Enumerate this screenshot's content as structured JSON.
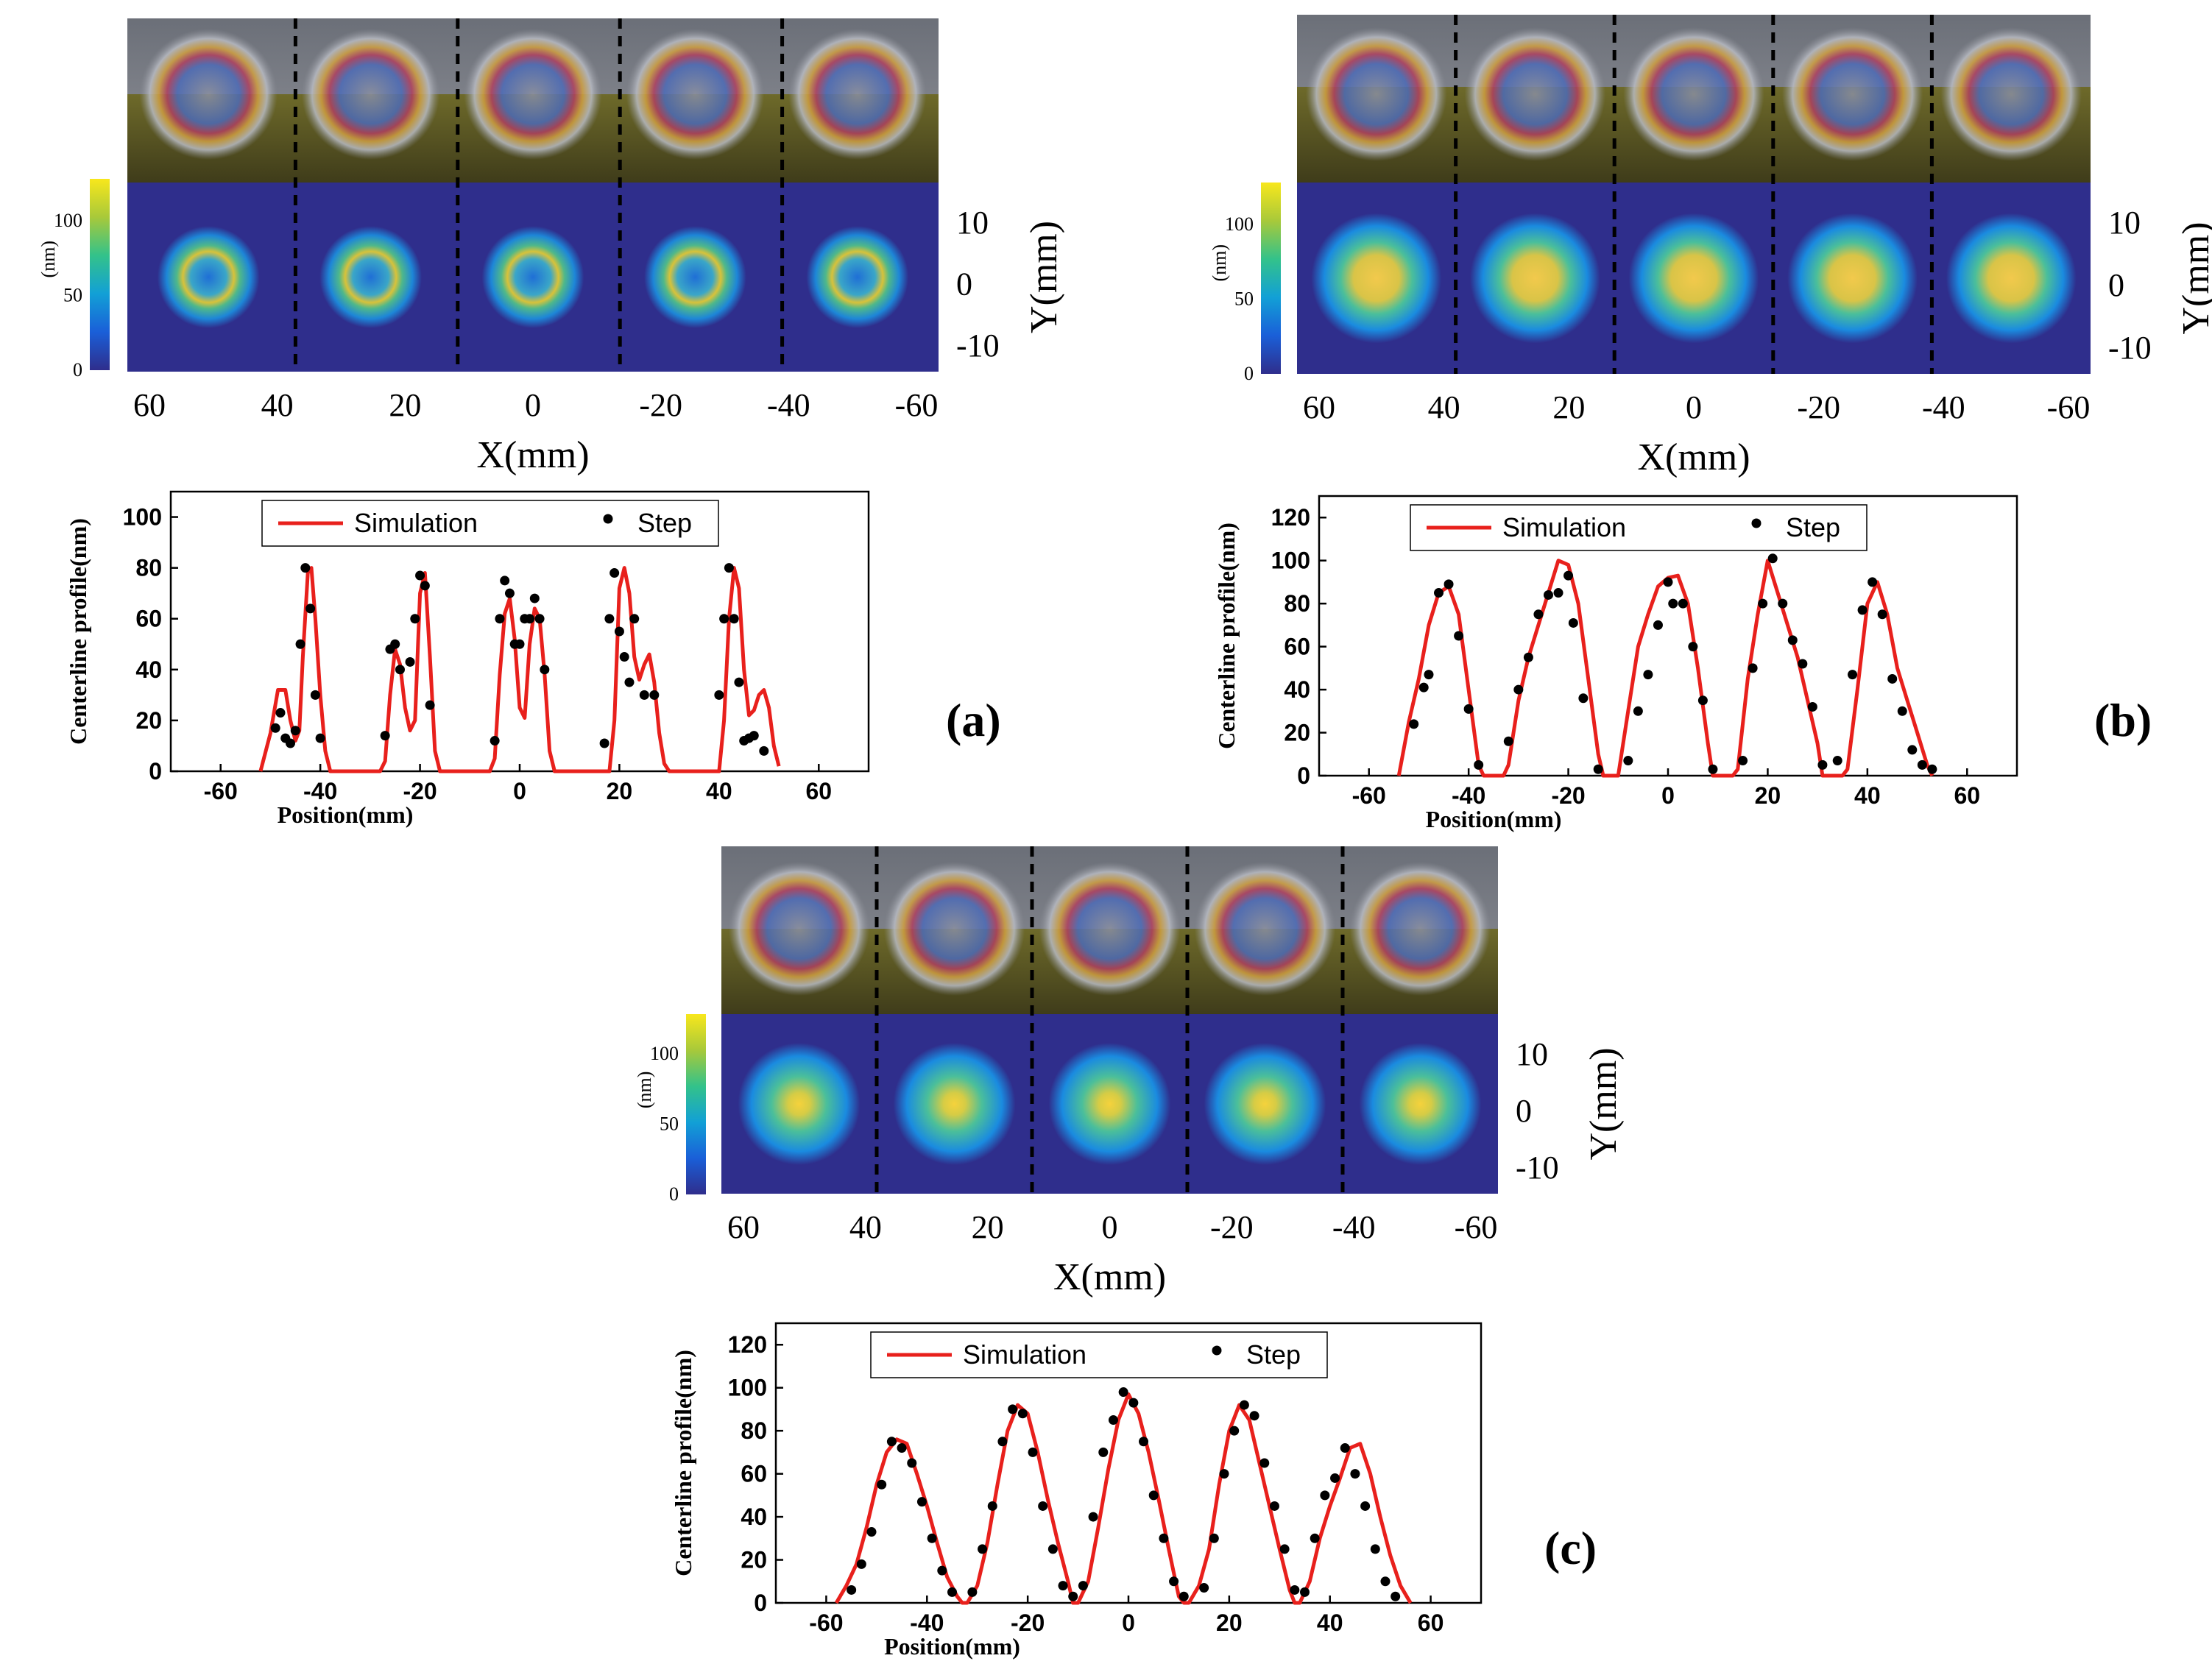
{
  "figure": {
    "panels": [
      {
        "id": "a",
        "label": "(a)",
        "colorbar_unit": "(nm)",
        "colorbar_ticks": [
          "0",
          "50",
          "100"
        ],
        "map_x_ticks": [
          "60",
          "40",
          "20",
          "0",
          "-20",
          "-40",
          "-60"
        ],
        "map_x_label": "X(mm)",
        "map_y_ticks": [
          "10",
          "0",
          "-10"
        ],
        "map_y_label": "Y(mm)",
        "spot_style": "ring"
      },
      {
        "id": "b",
        "label": "(b)",
        "colorbar_unit": "(nm)",
        "colorbar_ticks": [
          "0",
          "50",
          "100"
        ],
        "map_x_ticks": [
          "60",
          "40",
          "20",
          "0",
          "-20",
          "-40",
          "-60"
        ],
        "map_x_label": "X(mm)",
        "map_y_ticks": [
          "10",
          "0",
          "-10"
        ],
        "map_y_label": "Y(mm)",
        "spot_style": "filled"
      },
      {
        "id": "c",
        "label": "(c)",
        "colorbar_unit": "(nm)",
        "colorbar_ticks": [
          "0",
          "50",
          "100"
        ],
        "map_x_ticks": [
          "60",
          "40",
          "20",
          "0",
          "-20",
          "-40",
          "-60"
        ],
        "map_x_label": "X(mm)",
        "map_y_ticks": [
          "10",
          "0",
          "-10"
        ],
        "map_y_label": "Y(mm)",
        "spot_style": "smooth"
      }
    ],
    "colors": {
      "simulation": "#e8201c",
      "step": "#000000",
      "map_background": "#2f2e8c",
      "dashed_divider": "#000000"
    }
  },
  "chart_data": [
    {
      "panel": "a",
      "type": "line",
      "xlabel": "Position(mm)",
      "ylabel": "Centerline profile(nm)",
      "xlim": [
        -70,
        70
      ],
      "ylim": [
        0,
        110
      ],
      "xticks": [
        -60,
        -40,
        -20,
        0,
        20,
        40,
        60
      ],
      "yticks": [
        0,
        20,
        40,
        60,
        80,
        100
      ],
      "legend": {
        "position": "top-center",
        "entries": [
          "Simulation",
          "Step"
        ]
      },
      "series": [
        {
          "name": "Simulation",
          "style": "line",
          "x": [
            -52,
            -50,
            -48.5,
            -47,
            -46,
            -45,
            -44.2,
            -43.5,
            -42.5,
            -41.8,
            -41,
            -40,
            -39,
            -38,
            -36,
            -34,
            -32,
            -30,
            -28,
            -27,
            -26,
            -25,
            -24,
            -23,
            -22,
            -21,
            -20,
            -19,
            -18,
            -17,
            -16,
            -14,
            -12,
            -10,
            -8,
            -6,
            -5,
            -4,
            -3,
            -2,
            -1,
            0,
            1,
            2,
            3,
            4,
            5,
            6,
            7,
            8,
            9,
            10,
            12,
            14,
            16,
            18,
            19,
            20,
            21,
            22,
            23,
            24,
            25,
            26,
            27,
            28,
            29,
            30,
            32,
            34,
            36,
            38,
            40,
            41,
            42,
            43,
            44,
            45,
            46,
            47,
            48,
            49,
            50,
            51,
            52
          ],
          "y": [
            0,
            15,
            32,
            32,
            20,
            12,
            16,
            45,
            78,
            80,
            60,
            30,
            8,
            0,
            0,
            0,
            0,
            0,
            0,
            4,
            30,
            48,
            42,
            25,
            16,
            20,
            70,
            78,
            45,
            8,
            0,
            0,
            0,
            0,
            0,
            0,
            5,
            38,
            62,
            68,
            52,
            25,
            21,
            50,
            64,
            60,
            38,
            8,
            0,
            0,
            0,
            0,
            0,
            0,
            0,
            0,
            20,
            72,
            80,
            70,
            45,
            36,
            42,
            46,
            35,
            15,
            3,
            0,
            0,
            0,
            0,
            0,
            0,
            20,
            60,
            80,
            72,
            40,
            22,
            24,
            30,
            32,
            25,
            10,
            2
          ]
        },
        {
          "name": "Step",
          "style": "points",
          "x": [
            -49,
            -48,
            -47,
            -46,
            -45,
            -44,
            -43,
            -42,
            -41,
            -40,
            -27,
            -26,
            -25,
            -24,
            -22,
            -21,
            -20,
            -19,
            -18,
            -5,
            -4,
            -3,
            -2,
            -1,
            0,
            1,
            2,
            3,
            4,
            5,
            17,
            18,
            19,
            20,
            21,
            22,
            23,
            25,
            27,
            40,
            41,
            42,
            43,
            44,
            45,
            46,
            47,
            49
          ],
          "y": [
            17,
            23,
            13,
            11,
            16,
            50,
            80,
            64,
            30,
            13,
            14,
            48,
            50,
            40,
            43,
            60,
            77,
            73,
            26,
            12,
            60,
            75,
            70,
            50,
            50,
            60,
            60,
            68,
            60,
            40,
            11,
            60,
            78,
            55,
            45,
            35,
            60,
            30,
            30,
            30,
            60,
            80,
            60,
            35,
            12,
            13,
            14,
            8
          ]
        }
      ]
    },
    {
      "panel": "b",
      "type": "line",
      "xlabel": "Position(mm)",
      "ylabel": "Centerline profile(nm)",
      "xlim": [
        -70,
        70
      ],
      "ylim": [
        0,
        130
      ],
      "xticks": [
        -60,
        -40,
        -20,
        0,
        20,
        40,
        60
      ],
      "yticks": [
        0,
        20,
        40,
        60,
        80,
        100,
        120
      ],
      "legend": {
        "position": "top-center",
        "entries": [
          "Simulation",
          "Step"
        ]
      },
      "series": [
        {
          "name": "Simulation",
          "style": "line",
          "x": [
            -54,
            -52,
            -50,
            -48,
            -46,
            -44,
            -42,
            -40,
            -38,
            -37,
            -34,
            -33,
            -32,
            -30,
            -28,
            -26,
            -24,
            -22,
            -20,
            -18,
            -16,
            -14,
            -13,
            -10,
            -8,
            -6,
            -4,
            -2,
            0,
            2,
            4,
            6,
            8,
            9,
            12,
            13,
            14,
            16,
            18,
            20,
            22,
            24,
            26,
            28,
            30,
            31,
            34,
            35,
            36,
            38,
            40,
            42,
            44,
            46,
            48,
            50,
            52,
            53
          ],
          "y": [
            0,
            25,
            45,
            70,
            85,
            88,
            75,
            40,
            5,
            0,
            0,
            0,
            5,
            35,
            55,
            70,
            85,
            100,
            98,
            80,
            45,
            10,
            0,
            0,
            30,
            60,
            75,
            88,
            92,
            93,
            80,
            50,
            15,
            0,
            0,
            0,
            3,
            45,
            75,
            100,
            85,
            70,
            55,
            35,
            15,
            0,
            0,
            0,
            3,
            40,
            80,
            90,
            75,
            50,
            35,
            20,
            5,
            0
          ]
        },
        {
          "name": "Step",
          "style": "points",
          "x": [
            -51,
            -49,
            -48,
            -46,
            -44,
            -42,
            -40,
            -38,
            -32,
            -30,
            -28,
            -26,
            -24,
            -22,
            -20,
            -19,
            -17,
            -14,
            -8,
            -6,
            -4,
            -2,
            0,
            1,
            3,
            5,
            7,
            9,
            15,
            17,
            19,
            21,
            23,
            25,
            27,
            29,
            31,
            34,
            37,
            39,
            41,
            43,
            45,
            47,
            49,
            51,
            53
          ],
          "y": [
            24,
            41,
            47,
            85,
            89,
            65,
            31,
            5,
            16,
            40,
            55,
            75,
            84,
            85,
            93,
            71,
            36,
            3,
            7,
            30,
            47,
            70,
            90,
            80,
            80,
            60,
            35,
            3,
            7,
            50,
            80,
            101,
            80,
            63,
            52,
            32,
            5,
            7,
            47,
            77,
            90,
            75,
            45,
            30,
            12,
            5,
            3
          ]
        }
      ]
    },
    {
      "panel": "c",
      "type": "line",
      "xlabel": "Position(mm)",
      "ylabel": "Centerline profile(nm)",
      "xlim": [
        -70,
        70
      ],
      "ylim": [
        0,
        130
      ],
      "xticks": [
        -60,
        -40,
        -20,
        0,
        20,
        40,
        60
      ],
      "yticks": [
        0,
        20,
        40,
        60,
        80,
        100,
        120
      ],
      "legend": {
        "position": "top-center",
        "entries": [
          "Simulation",
          "Step"
        ]
      },
      "series": [
        {
          "name": "Simulation",
          "style": "line",
          "x": [
            -58,
            -56,
            -54,
            -52,
            -50,
            -48,
            -46,
            -44,
            -42,
            -40,
            -38,
            -36,
            -34,
            -33,
            -32,
            -30,
            -28,
            -26,
            -24,
            -22,
            -20,
            -18,
            -16,
            -14,
            -12,
            -11,
            -10,
            -8,
            -6,
            -4,
            -2,
            0,
            2,
            4,
            6,
            8,
            10,
            11,
            12,
            14,
            16,
            18,
            20,
            22,
            24,
            26,
            28,
            30,
            32,
            33,
            34,
            36,
            38,
            40,
            42,
            44,
            46,
            48,
            50,
            52,
            54,
            56
          ],
          "y": [
            0,
            8,
            18,
            35,
            55,
            70,
            76,
            74,
            60,
            45,
            28,
            12,
            3,
            0,
            0,
            8,
            28,
            55,
            80,
            92,
            88,
            70,
            48,
            28,
            10,
            0,
            0,
            10,
            35,
            62,
            85,
            97,
            88,
            70,
            48,
            25,
            3,
            0,
            0,
            8,
            25,
            55,
            80,
            92,
            85,
            65,
            45,
            25,
            6,
            0,
            0,
            10,
            30,
            45,
            58,
            72,
            74,
            60,
            40,
            22,
            8,
            0
          ]
        },
        {
          "name": "Step",
          "style": "points",
          "x": [
            -55,
            -53,
            -51,
            -49,
            -47,
            -45,
            -43,
            -41,
            -39,
            -37,
            -35,
            -31,
            -29,
            -27,
            -25,
            -23,
            -21,
            -19,
            -17,
            -15,
            -13,
            -11,
            -9,
            -7,
            -5,
            -3,
            -1,
            1,
            3,
            5,
            7,
            9,
            11,
            15,
            17,
            19,
            21,
            23,
            25,
            27,
            29,
            31,
            33,
            35,
            37,
            39,
            41,
            43,
            45,
            47,
            49,
            51,
            53
          ],
          "y": [
            6,
            18,
            33,
            55,
            75,
            72,
            65,
            47,
            30,
            15,
            5,
            5,
            25,
            45,
            75,
            90,
            88,
            70,
            45,
            25,
            8,
            3,
            8,
            40,
            70,
            85,
            98,
            93,
            75,
            50,
            30,
            10,
            3,
            7,
            30,
            60,
            80,
            92,
            87,
            65,
            45,
            25,
            6,
            5,
            30,
            50,
            58,
            72,
            60,
            45,
            25,
            10,
            3
          ]
        }
      ]
    }
  ]
}
